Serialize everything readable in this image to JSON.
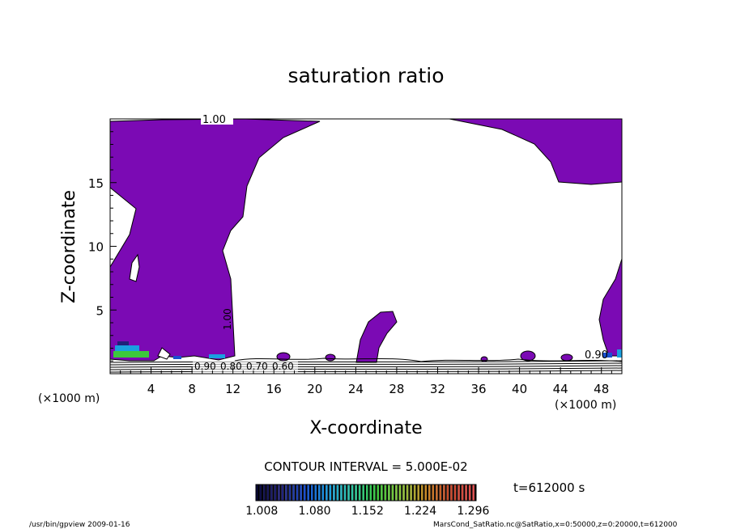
{
  "chart_data": {
    "type": "contour",
    "title": "saturation ratio",
    "xlabel": "X-coordinate",
    "ylabel": "Z-coordinate",
    "x_unit": "(×1000 m)",
    "z_unit": "(×1000 m)",
    "xlim": [
      0,
      50
    ],
    "ylim": [
      0,
      20
    ],
    "x_ticks": [
      4,
      8,
      12,
      16,
      20,
      24,
      28,
      32,
      36,
      40,
      44,
      48
    ],
    "y_ticks": [
      5,
      10,
      15
    ],
    "contour_labels": [
      "1.00",
      "1.00",
      "0.90",
      "0.80",
      "0.70",
      "0.60",
      "0.90"
    ],
    "contour_interval_text": "CONTOUR INTERVAL = 5.000E-02",
    "time_text": "t=612000 s",
    "colorbar": {
      "ticks": [
        "1.008",
        "1.080",
        "1.152",
        "1.224",
        "1.296"
      ],
      "range": [
        1.0,
        1.3
      ],
      "colors": [
        "#0a0a3c",
        "#20207a",
        "#1a4fd0",
        "#1aa0e0",
        "#2ec8a0",
        "#3cc83c",
        "#8cc83c",
        "#c88c28",
        "#c84628",
        "#e05050"
      ]
    },
    "fill_color": "#7b0ab4",
    "footer_left": "/usr/bin/gpview  2009-01-16",
    "footer_right": "MarsCond_SatRatio.nc@SatRatio,x=0:50000,z=0:20000,t=612000"
  }
}
